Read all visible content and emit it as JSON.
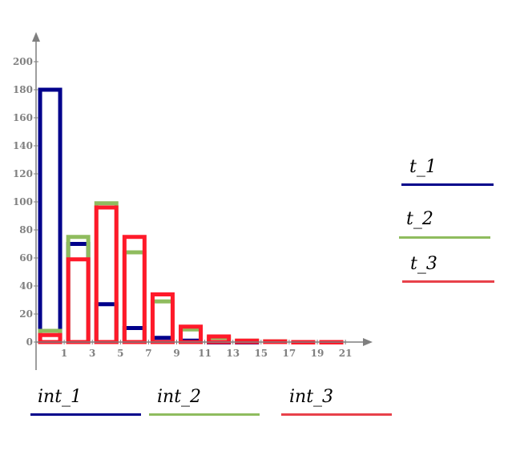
{
  "chart_data": {
    "type": "bar",
    "x_ticks": [
      1,
      3,
      5,
      7,
      9,
      11,
      13,
      15,
      17,
      19,
      21
    ],
    "y_ticks": [
      0,
      20,
      40,
      60,
      80,
      100,
      120,
      140,
      160,
      180,
      200
    ],
    "xlim": [
      -1,
      23
    ],
    "ylim": [
      0,
      200
    ],
    "series": [
      {
        "color": "#00008b",
        "x": [
          0,
          2,
          4,
          6,
          8,
          10,
          12,
          14
        ],
        "values": [
          180,
          70,
          27,
          10,
          3,
          1,
          0,
          0
        ]
      },
      {
        "color": "#8fbc5e",
        "x": [
          0,
          2,
          4,
          6,
          8,
          10,
          12,
          14,
          16,
          18,
          20
        ],
        "values": [
          8,
          75,
          99,
          64,
          29,
          9,
          3,
          1,
          0.5,
          0,
          0
        ]
      },
      {
        "color": "#ff1a2a",
        "x": [
          0,
          2,
          4,
          6,
          8,
          10,
          12,
          14,
          16,
          18,
          20
        ],
        "values": [
          5,
          59,
          96,
          75,
          34,
          11,
          4,
          1,
          0.5,
          0,
          0
        ]
      }
    ],
    "legend_right": [
      {
        "label": "t_1",
        "color": "#00008b"
      },
      {
        "label": "t_2",
        "color": "#8fbc5e"
      },
      {
        "label": "t_3",
        "color": "#e8414a"
      }
    ],
    "legend_bottom": [
      {
        "label": "int_1",
        "color": "#00008b"
      },
      {
        "label": "int_2",
        "color": "#8fbc5e"
      },
      {
        "label": "int_3",
        "color": "#e8414a"
      }
    ]
  }
}
